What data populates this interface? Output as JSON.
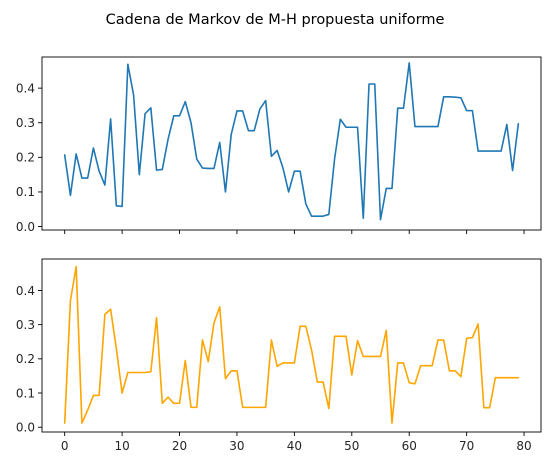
{
  "figure": {
    "suptitle": "Cadena de Markov de M-H propuesta uniforme"
  },
  "chart_data": [
    {
      "type": "line",
      "title": "",
      "xlabel": "",
      "ylabel": "",
      "xlim": [
        -3.95,
        82.95
      ],
      "ylim": [
        -0.01,
        0.49
      ],
      "xticks": [
        0,
        10,
        20,
        30,
        40,
        50,
        60,
        70,
        80
      ],
      "xtick_labels_visible": false,
      "yticks": [
        0.0,
        0.1,
        0.2,
        0.3,
        0.4
      ],
      "ytick_labels": [
        "0.0",
        "0.1",
        "0.2",
        "0.3",
        "0.4"
      ],
      "grid": false,
      "legend": "none",
      "color": "#1f77b4",
      "x": [
        0,
        1,
        2,
        3,
        4,
        5,
        6,
        7,
        8,
        9,
        10,
        11,
        12,
        13,
        14,
        15,
        16,
        17,
        18,
        19,
        20,
        21,
        22,
        23,
        24,
        25,
        26,
        27,
        28,
        29,
        30,
        31,
        32,
        33,
        34,
        35,
        36,
        37,
        38,
        39,
        40,
        41,
        42,
        43,
        44,
        45,
        46,
        47,
        48,
        49,
        50,
        51,
        52,
        53,
        54,
        55,
        56,
        57,
        58,
        59,
        60,
        61,
        62,
        63,
        64,
        65,
        66,
        67,
        68,
        69,
        70,
        71,
        72,
        73,
        74,
        75,
        76,
        77,
        78,
        79
      ],
      "values": [
        0.207,
        0.09,
        0.21,
        0.14,
        0.14,
        0.227,
        0.16,
        0.12,
        0.311,
        0.06,
        0.058,
        0.469,
        0.38,
        0.15,
        0.326,
        0.343,
        0.163,
        0.165,
        0.252,
        0.32,
        0.32,
        0.361,
        0.3,
        0.195,
        0.169,
        0.168,
        0.168,
        0.243,
        0.1,
        0.266,
        0.334,
        0.334,
        0.277,
        0.277,
        0.34,
        0.364,
        0.203,
        0.22,
        0.17,
        0.1,
        0.16,
        0.16,
        0.065,
        0.03,
        0.03,
        0.03,
        0.035,
        0.195,
        0.31,
        0.287,
        0.287,
        0.287,
        0.024,
        0.412,
        0.412,
        0.02,
        0.11,
        0.11,
        0.342,
        0.342,
        0.473,
        0.289,
        0.289,
        0.289,
        0.289,
        0.289,
        0.375,
        0.375,
        0.374,
        0.372,
        0.335,
        0.335,
        0.218,
        0.218,
        0.218,
        0.218,
        0.218,
        0.295,
        0.162,
        0.297
      ]
    },
    {
      "type": "line",
      "title": "",
      "xlabel": "",
      "ylabel": "",
      "xlim": [
        -3.95,
        82.95
      ],
      "ylim": [
        -0.014,
        0.492
      ],
      "xticks": [
        0,
        10,
        20,
        30,
        40,
        50,
        60,
        70,
        80
      ],
      "xtick_labels": [
        "0",
        "10",
        "20",
        "30",
        "40",
        "50",
        "60",
        "70",
        "80"
      ],
      "yticks": [
        0.0,
        0.1,
        0.2,
        0.3,
        0.4
      ],
      "ytick_labels": [
        "0.0",
        "0.1",
        "0.2",
        "0.3",
        "0.4"
      ],
      "grid": false,
      "legend": "none",
      "color": "#ffa500",
      "x": [
        0,
        1,
        2,
        3,
        4,
        5,
        6,
        7,
        8,
        9,
        10,
        11,
        12,
        13,
        14,
        15,
        16,
        17,
        18,
        19,
        20,
        21,
        22,
        23,
        24,
        25,
        26,
        27,
        28,
        29,
        30,
        31,
        32,
        33,
        34,
        35,
        36,
        37,
        38,
        39,
        40,
        41,
        42,
        43,
        44,
        45,
        46,
        47,
        48,
        49,
        50,
        51,
        52,
        53,
        54,
        55,
        56,
        57,
        58,
        59,
        60,
        61,
        62,
        63,
        64,
        65,
        66,
        67,
        68,
        69,
        70,
        71,
        72,
        73,
        74,
        75,
        76,
        77,
        78,
        79
      ],
      "values": [
        0.012,
        0.37,
        0.47,
        0.012,
        0.05,
        0.093,
        0.093,
        0.33,
        0.345,
        0.23,
        0.1,
        0.16,
        0.16,
        0.16,
        0.16,
        0.162,
        0.32,
        0.07,
        0.088,
        0.07,
        0.07,
        0.195,
        0.058,
        0.058,
        0.255,
        0.192,
        0.305,
        0.352,
        0.142,
        0.165,
        0.165,
        0.058,
        0.058,
        0.058,
        0.058,
        0.058,
        0.255,
        0.178,
        0.188,
        0.188,
        0.188,
        0.295,
        0.295,
        0.225,
        0.132,
        0.132,
        0.055,
        0.266,
        0.266,
        0.266,
        0.153,
        0.253,
        0.207,
        0.207,
        0.207,
        0.207,
        0.283,
        0.012,
        0.188,
        0.188,
        0.13,
        0.127,
        0.18,
        0.18,
        0.18,
        0.255,
        0.255,
        0.165,
        0.165,
        0.148,
        0.26,
        0.262,
        0.302,
        0.057,
        0.057,
        0.145,
        0.145,
        0.145,
        0.145,
        0.145
      ]
    }
  ]
}
